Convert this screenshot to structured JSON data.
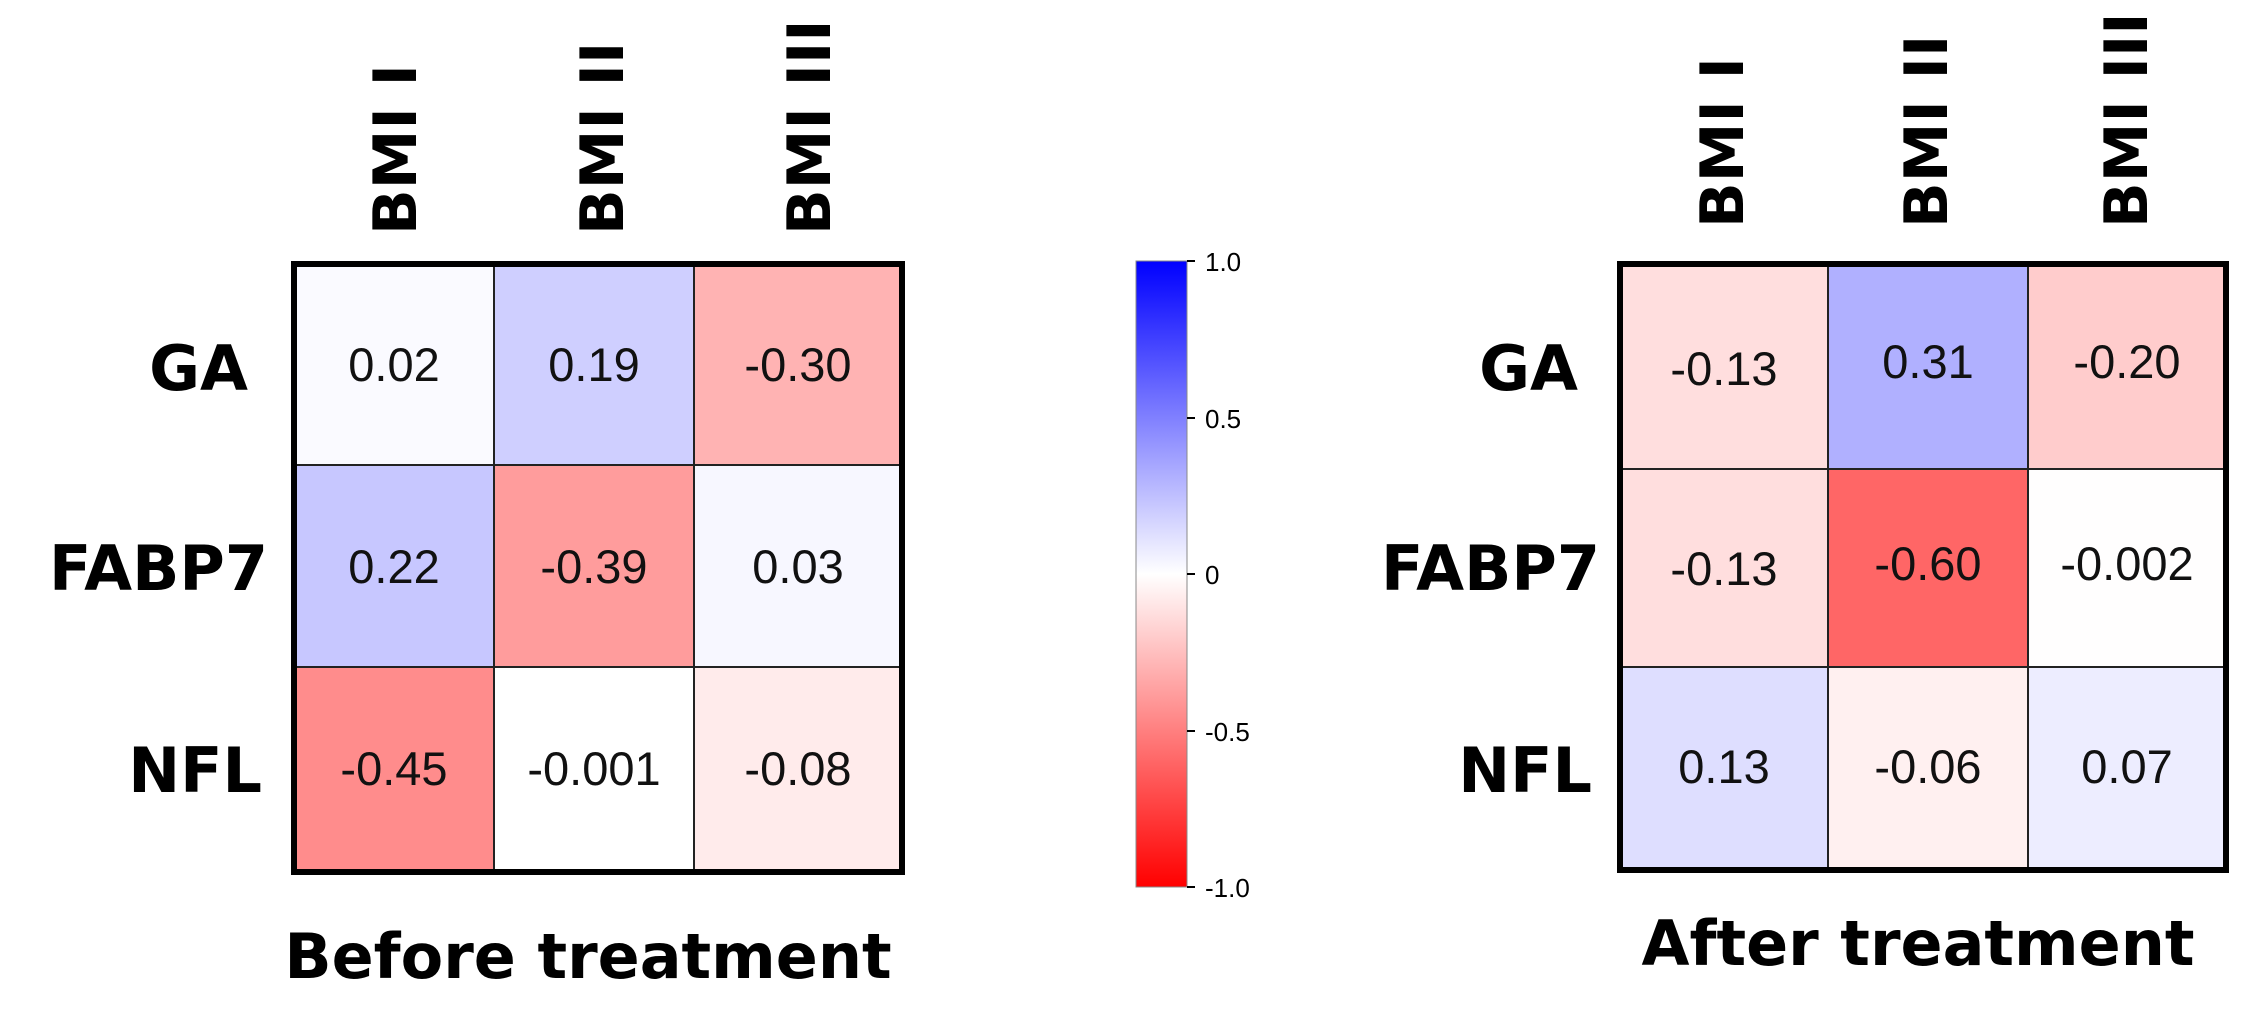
{
  "chart_data": {
    "type": "heatmap",
    "color_scale": {
      "min": -1.0,
      "max": 1.0,
      "low_color": "#ff0000",
      "mid_color": "#ffffff",
      "high_color": "#0000ff",
      "tick_values": [
        1.0,
        0.5,
        0,
        -0.5,
        -1.0
      ],
      "tick_labels": [
        "1.0",
        "0.5",
        "0",
        "-0.5",
        "-1.0"
      ]
    },
    "panels": [
      {
        "title": "Before treatment",
        "rows": [
          "GA",
          "FABP7",
          "NFL"
        ],
        "columns": [
          "BMI I",
          "BMI II",
          "BMI III"
        ],
        "values": [
          [
            0.02,
            0.19,
            -0.3
          ],
          [
            0.22,
            -0.39,
            0.03
          ],
          [
            -0.45,
            -0.001,
            -0.08
          ]
        ],
        "labels": [
          [
            "0.02",
            "0.19",
            "-0.30"
          ],
          [
            "0.22",
            "-0.39",
            "0.03"
          ],
          [
            "-0.45",
            "-0.001",
            "-0.08"
          ]
        ]
      },
      {
        "title": "After treatment",
        "rows": [
          "GA",
          "FABP7",
          "NFL"
        ],
        "columns": [
          "BMI I",
          "BMI II",
          "BMI III"
        ],
        "values": [
          [
            -0.13,
            0.31,
            -0.2
          ],
          [
            -0.13,
            -0.6,
            -0.002
          ],
          [
            0.13,
            -0.06,
            0.07
          ]
        ],
        "labels": [
          [
            "-0.13",
            "0.31",
            "-0.20"
          ],
          [
            "-0.13",
            "-0.60",
            "-0.002"
          ],
          [
            "0.13",
            "-0.06",
            "0.07"
          ]
        ]
      }
    ]
  }
}
